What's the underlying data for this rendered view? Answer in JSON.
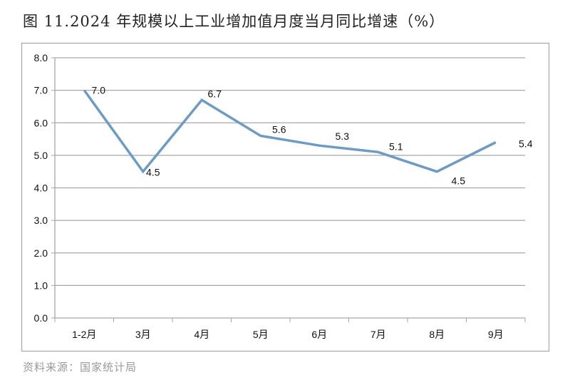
{
  "title": "图 11.2024 年规模以上工业增加值月度当月同比增速（%）",
  "source": "资料来源：国家统计局",
  "chart_data": {
    "type": "line",
    "categories": [
      "1-2月",
      "3月",
      "4月",
      "5月",
      "6月",
      "7月",
      "8月",
      "9月"
    ],
    "series": [
      {
        "values": [
          7.0,
          4.5,
          6.7,
          5.6,
          5.3,
          5.1,
          4.5,
          5.4
        ],
        "color": "#6b9bc9"
      }
    ],
    "data_labels": [
      "7.0",
      "4.5",
      "6.7",
      "5.6",
      "5.3",
      "5.1",
      "4.5",
      "5.4"
    ],
    "ylim": [
      0,
      8
    ],
    "yticks": [
      "0.0",
      "1.0",
      "2.0",
      "3.0",
      "4.0",
      "5.0",
      "6.0",
      "7.0",
      "8.0"
    ],
    "grid": true,
    "legend": "none"
  }
}
